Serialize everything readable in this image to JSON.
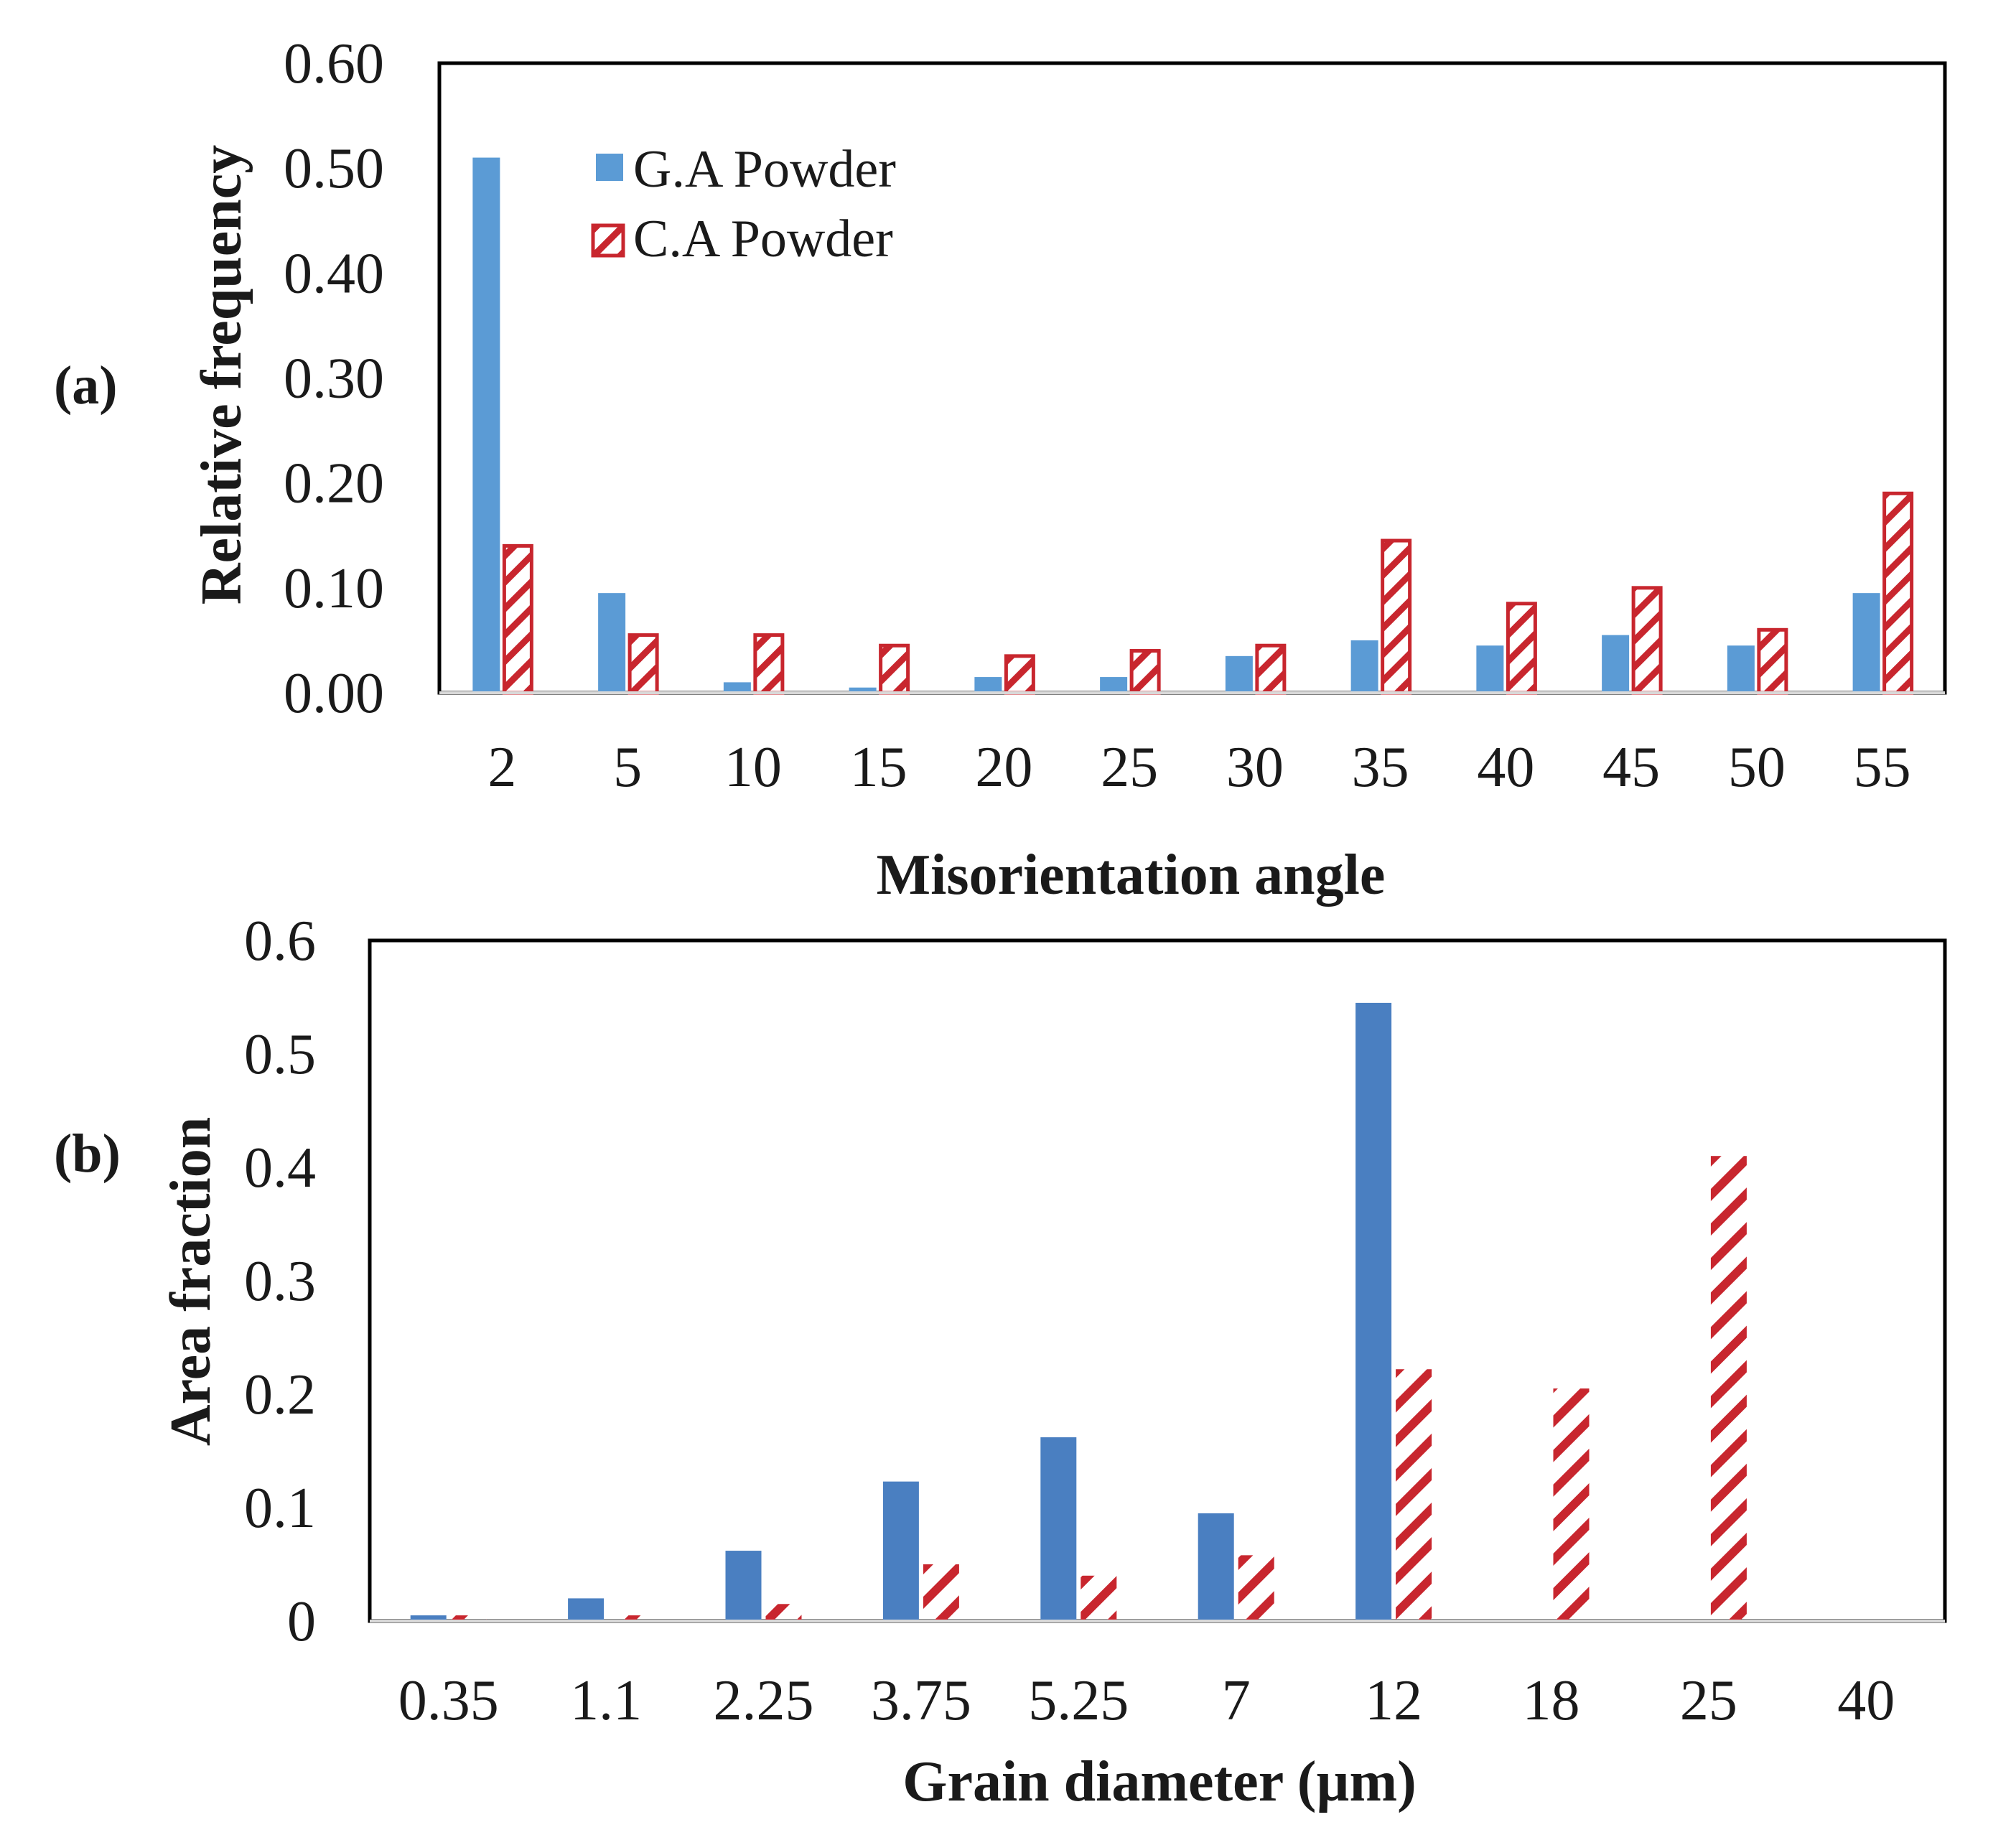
{
  "chart_data": [
    {
      "type": "bar",
      "panel_label": "(a)",
      "xlabel": "Misorientation angle",
      "ylabel": "Relative frequency",
      "categories": [
        "2",
        "5",
        "10",
        "15",
        "20",
        "25",
        "30",
        "35",
        "40",
        "45",
        "50",
        "55"
      ],
      "ylim": [
        0,
        0.6
      ],
      "yticks": [
        "0.00",
        "0.10",
        "0.20",
        "0.30",
        "0.40",
        "0.50",
        "0.60"
      ],
      "grid": false,
      "legend_position": "top-left",
      "series": [
        {
          "name": "G.A Powder",
          "style": "solid",
          "color": "#5b9bd5",
          "values": [
            0.51,
            0.095,
            0.01,
            0.005,
            0.015,
            0.015,
            0.035,
            0.05,
            0.045,
            0.055,
            0.045,
            0.095
          ]
        },
        {
          "name": "C.A Powder",
          "style": "hatched",
          "color": "#c8262e",
          "values": [
            0.14,
            0.055,
            0.055,
            0.045,
            0.035,
            0.04,
            0.045,
            0.145,
            0.085,
            0.1,
            0.06,
            0.19
          ]
        }
      ]
    },
    {
      "type": "bar",
      "panel_label": "(b)",
      "xlabel": "Grain diameter (µm)",
      "ylabel": "Area fraction",
      "categories": [
        "0.35",
        "1.1",
        "2.25",
        "3.75",
        "5.25",
        "7",
        "12",
        "18",
        "25",
        "40"
      ],
      "ylim": [
        0,
        0.6
      ],
      "yticks": [
        "0",
        "0.1",
        "0.2",
        "0.3",
        "0.4",
        "0.5",
        "0.6"
      ],
      "grid": false,
      "legend_position": "none",
      "series": [
        {
          "name": "G.A Powder",
          "style": "solid",
          "color": "#4a7fc1",
          "values": [
            0.005,
            0.02,
            0.062,
            0.123,
            0.162,
            0.095,
            0.545,
            0,
            0,
            0
          ]
        },
        {
          "name": "C.A Powder",
          "style": "hatched-no-border",
          "color": "#c8262e",
          "values": [
            0.005,
            0.005,
            0.015,
            0.05,
            0.04,
            0.058,
            0.222,
            0.205,
            0.41,
            0
          ]
        }
      ]
    }
  ]
}
